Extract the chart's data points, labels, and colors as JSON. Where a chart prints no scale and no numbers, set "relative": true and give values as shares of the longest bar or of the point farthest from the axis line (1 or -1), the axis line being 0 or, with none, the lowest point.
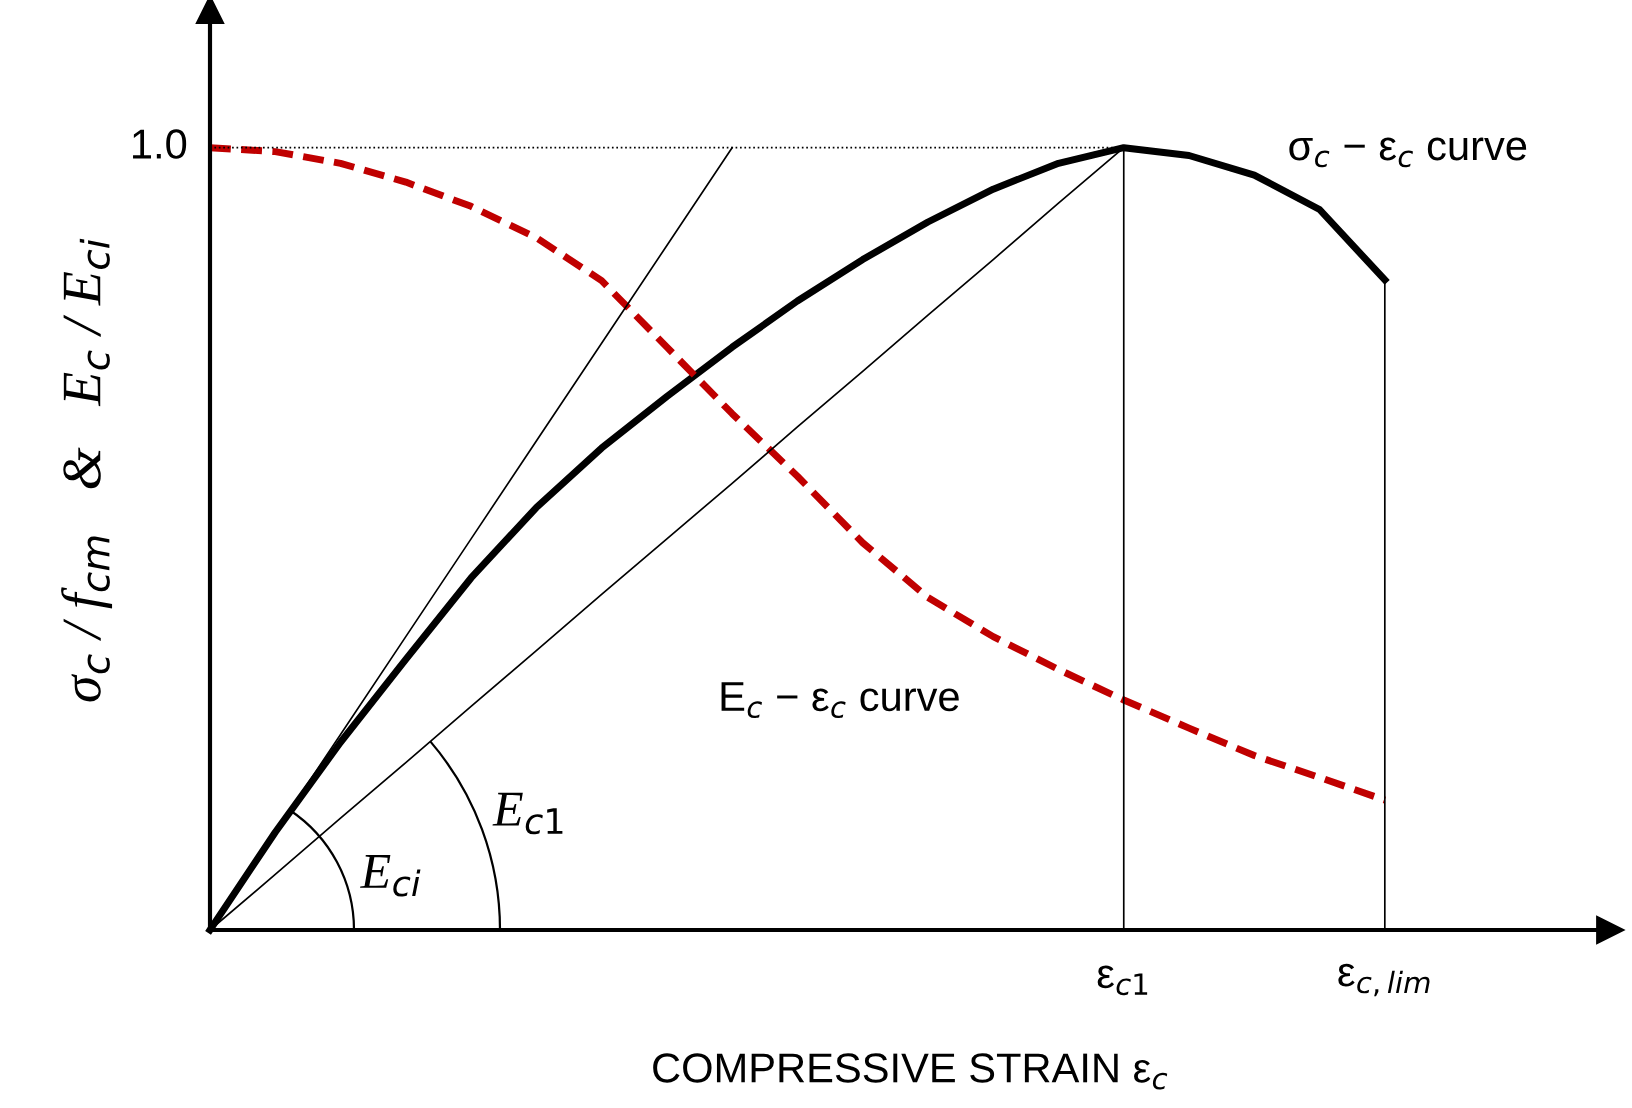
{
  "chart_data": {
    "type": "line",
    "relative": true,
    "xlabel": "COMPRESSIVE STRAIN ε$_{c}$",
    "ylabel": "σ$_{c}$ / f$_{cm}$   &   E$_{c}$ / E$_{ci}$",
    "categories": [
      null,
      null,
      null,
      null,
      null,
      null,
      null,
      null,
      null,
      null,
      null,
      null,
      null,
      null,
      "ε$_{c1}$",
      null,
      null,
      null,
      "ε$_{c,lim}$"
    ],
    "series": [
      {
        "name": "σ$_{c}$ − ε$_{c}$ curve",
        "color": "#000000",
        "line_style": "solid",
        "values": [
          0,
          0.125,
          0.24,
          0.346,
          0.45,
          0.54,
          0.616,
          0.682,
          0.745,
          0.804,
          0.857,
          0.905,
          0.947,
          0.98,
          1.0,
          0.99,
          0.965,
          0.921,
          0.831
        ]
      },
      {
        "name": "E$_{c}$ − ε$_{c}$ curve",
        "color": "#c00000",
        "line_style": "dashed",
        "values": [
          1.0,
          0.995,
          0.98,
          0.956,
          0.925,
          0.885,
          0.83,
          0.745,
          0.66,
          0.58,
          0.495,
          0.425,
          0.375,
          0.333,
          0.294,
          0.258,
          0.223,
          0.195,
          0.166
        ]
      },
      {
        "color": "#000000",
        "line_style": "solid",
        "values": [
          0,
          0.125,
          0.25,
          0.375,
          0.5,
          0.625,
          0.75,
          0.875,
          1.0,
          null,
          null,
          null,
          null,
          null,
          null,
          null,
          null,
          null,
          null
        ]
      },
      {
        "color": "#000000",
        "line_style": "solid",
        "values": [
          0,
          0.071,
          0.143,
          0.214,
          0.286,
          0.357,
          0.429,
          0.5,
          0.571,
          0.643,
          0.714,
          0.786,
          0.857,
          0.929,
          1.0,
          null,
          null,
          null,
          null
        ]
      },
      {
        "color": "#000000",
        "line_style": "dotted",
        "values": [
          1.0,
          1.0,
          1.0,
          1.0,
          1.0,
          1.0,
          1.0,
          1.0,
          1.0,
          1.0,
          1.0,
          1.0,
          1.0,
          1.0,
          1.0,
          null,
          null,
          null,
          null
        ]
      }
    ],
    "ref_lines": [
      {
        "axis": "x",
        "value": "ε$_{c1}$",
        "color": "#000000"
      },
      {
        "axis": "x",
        "value": "ε$_{c,lim}$",
        "color": "#000000"
      }
    ],
    "annotations": [
      "1.0",
      "E$_{ci}$",
      "E$_{c1}$"
    ]
  }
}
